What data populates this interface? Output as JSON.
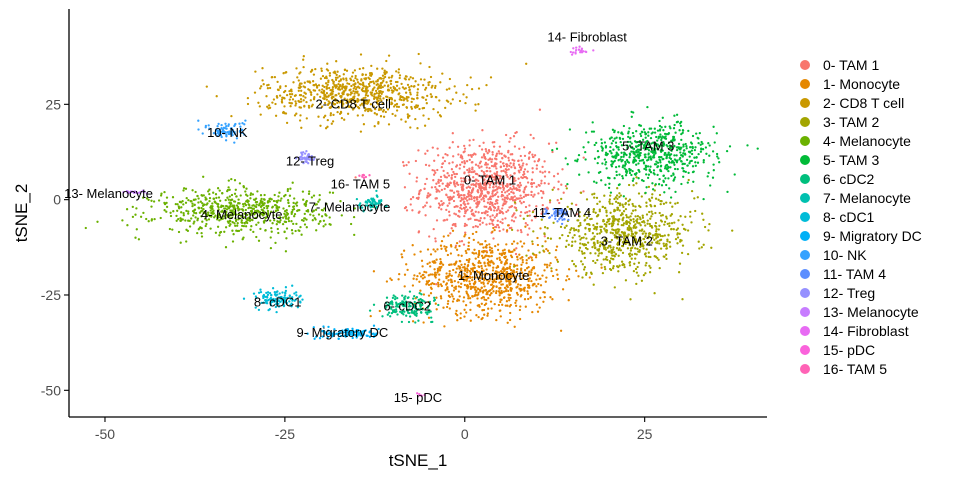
{
  "chart_data": {
    "type": "scatter",
    "title": "",
    "xlabel": "tSNE_1",
    "ylabel": "tSNE_2",
    "xlim": [
      -55,
      42
    ],
    "ylim": [
      -57,
      50
    ],
    "x_ticks": [
      -50,
      -25,
      0,
      25
    ],
    "x_tick_labels": [
      "-50",
      "-25",
      "0",
      "25"
    ],
    "y_ticks": [
      -50,
      -25,
      0,
      25
    ],
    "y_tick_labels": [
      "-50",
      "-25",
      "0",
      "25"
    ],
    "grid": false,
    "legend_position": "right",
    "series": [
      {
        "name": "0- TAM 1",
        "color": "#F8766D",
        "label_x": 3.5,
        "label_y": 5,
        "center": [
          3,
          3
        ],
        "spread": [
          9,
          12
        ],
        "n": 900
      },
      {
        "name": "1- Monocyte",
        "color": "#E58700",
        "label_x": 4,
        "label_y": -20,
        "center": [
          3,
          -20
        ],
        "spread": [
          10,
          10
        ],
        "n": 800
      },
      {
        "name": "2- CD8 T cell",
        "color": "#C99800",
        "label_x": -15.5,
        "label_y": 25,
        "center": [
          -15,
          28
        ],
        "spread": [
          13,
          7
        ],
        "n": 750
      },
      {
        "name": "3- TAM 2",
        "color": "#A3A500",
        "label_x": 22.5,
        "label_y": -11,
        "center": [
          22,
          -9
        ],
        "spread": [
          10,
          10
        ],
        "n": 700
      },
      {
        "name": "4- Melanocyte",
        "color": "#6BB100",
        "label_x": -31,
        "label_y": -4,
        "center": [
          -31,
          -3
        ],
        "spread": [
          12,
          6
        ],
        "n": 650
      },
      {
        "name": "5- TAM 3",
        "color": "#00BA38",
        "label_x": 25.5,
        "label_y": 14,
        "center": [
          26,
          12
        ],
        "spread": [
          9,
          8
        ],
        "n": 600
      },
      {
        "name": "6- cDC2",
        "color": "#00BF7D",
        "label_x": -8,
        "label_y": -28,
        "center": [
          -8,
          -28
        ],
        "spread": [
          3.5,
          3
        ],
        "n": 160
      },
      {
        "name": "7- Melanocyte",
        "color": "#00C0AF",
        "label_x": -16,
        "label_y": -2,
        "center": [
          -13,
          -1
        ],
        "spread": [
          2,
          2
        ],
        "n": 60
      },
      {
        "name": "8- cDC1",
        "color": "#00BCD8",
        "label_x": -26,
        "label_y": -27,
        "center": [
          -26,
          -26
        ],
        "spread": [
          3,
          2.5
        ],
        "n": 120
      },
      {
        "name": "9- Migratory DC",
        "color": "#00B0F6",
        "label_x": -17,
        "label_y": -35,
        "center": [
          -16,
          -35
        ],
        "spread": [
          4,
          1.5
        ],
        "n": 110
      },
      {
        "name": "10- NK",
        "color": "#35A2FF",
        "label_x": -33,
        "label_y": 17.5,
        "center": [
          -33,
          18
        ],
        "spread": [
          2.5,
          2.5
        ],
        "n": 90
      },
      {
        "name": "11- TAM 4",
        "color": "#5B8EFF",
        "label_x": 13.5,
        "label_y": -3.5,
        "center": [
          13,
          -4
        ],
        "spread": [
          2,
          2
        ],
        "n": 50
      },
      {
        "name": "12- Treg",
        "color": "#9590FF",
        "label_x": -21.5,
        "label_y": 10,
        "center": [
          -22,
          11
        ],
        "spread": [
          1,
          1.5
        ],
        "n": 40
      },
      {
        "name": "13- Melanocyte",
        "color": "#C77CFF",
        "label_x": -49.5,
        "label_y": 1.5,
        "center": [
          -46,
          2
        ],
        "spread": [
          2,
          0.5
        ],
        "n": 25
      },
      {
        "name": "14- Fibroblast",
        "color": "#E76BF3",
        "label_x": 17,
        "label_y": 42.5,
        "center": [
          16,
          39
        ],
        "spread": [
          1.5,
          1
        ],
        "n": 20
      },
      {
        "name": "15- pDC",
        "color": "#FA62DB",
        "label_x": -6.5,
        "label_y": -52,
        "center": [
          -6,
          -51
        ],
        "spread": [
          0.5,
          0.5
        ],
        "n": 6
      },
      {
        "name": "16- TAM 5",
        "color": "#FF63B6",
        "label_x": -14.5,
        "label_y": 4,
        "center": [
          -14,
          6
        ],
        "spread": [
          1,
          1
        ],
        "n": 8
      }
    ]
  }
}
